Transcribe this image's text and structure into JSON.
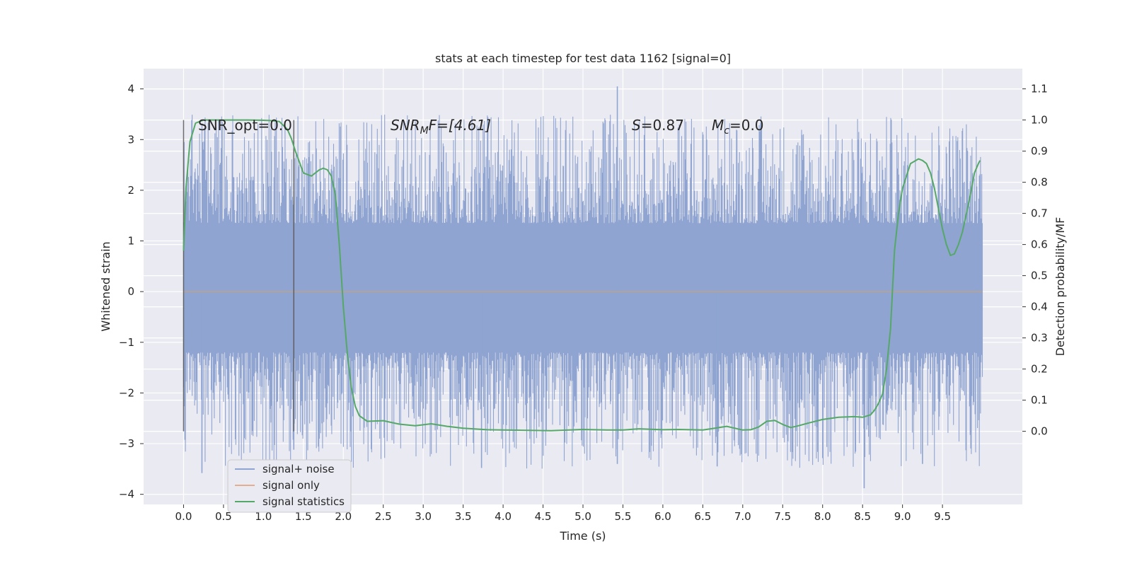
{
  "chart_data": {
    "type": "line",
    "title": "stats at each timestep for test data 1162 [signal=0]",
    "xlabel": "Time (s)",
    "ylabel": "Whitened strain",
    "ylabel_right": "Detection probability/MF",
    "xlim": [
      -0.5,
      10.5
    ],
    "ylim": [
      -4.2,
      4.4
    ],
    "ylim_right": [
      -0.235,
      1.165
    ],
    "x_ticks": [
      "0.0",
      "0.5",
      "1.0",
      "1.5",
      "2.0",
      "2.5",
      "3.0",
      "3.5",
      "4.0",
      "4.5",
      "5.0",
      "5.5",
      "6.0",
      "6.5",
      "7.0",
      "7.5",
      "8.0",
      "8.5",
      "9.0",
      "9.5"
    ],
    "x_tick_values": [
      0,
      0.5,
      1,
      1.5,
      2,
      2.5,
      3,
      3.5,
      4,
      4.5,
      5,
      5.5,
      6,
      6.5,
      7,
      7.5,
      8,
      8.5,
      9,
      9.5
    ],
    "y_ticks": [
      "4",
      "3",
      "2",
      "1",
      "0",
      "−1",
      "−2",
      "−3",
      "−4"
    ],
    "y_tick_values": [
      4,
      3,
      2,
      1,
      0,
      -1,
      -2,
      -3,
      -4
    ],
    "y_right_ticks": [
      "1.1",
      "1.0",
      "0.9",
      "0.8",
      "0.7",
      "0.6",
      "0.5",
      "0.4",
      "0.3",
      "0.2",
      "0.1",
      "0.0"
    ],
    "y_right_tick_values": [
      1.1,
      1.0,
      0.9,
      0.8,
      0.7,
      0.6,
      0.5,
      0.4,
      0.3,
      0.2,
      0.1,
      0.0
    ],
    "grid": true,
    "legend_position": "lower-left",
    "annotations": {
      "snr_opt": "SNR_opt=0.0",
      "snr_mf_prefix": "SNR",
      "snr_mf_sub": "M",
      "snr_mf_suffix": "F=[4.61]",
      "s_label": "S",
      "s_value": "=0.87",
      "mc_label": "M",
      "mc_sub": "c",
      "mc_value": "=0.0"
    },
    "vertical_lines": [
      0.0,
      1.38
    ],
    "series": [
      {
        "name": "signal+ noise",
        "color": "#8fa4d0",
        "axis": "left",
        "x_range": [
          0.0,
          10.0
        ],
        "band_core": [
          -1.2,
          1.35
        ],
        "typical_peak_max": 3.5,
        "typical_peak_min": -3.5,
        "extremes": [
          {
            "x": 0.23,
            "y": -3.58
          },
          {
            "x": 1.38,
            "y": -3.12
          },
          {
            "x": 3.73,
            "y": -3.48
          },
          {
            "x": 5.43,
            "y": 4.05
          },
          {
            "x": 5.43,
            "y": -3.4
          },
          {
            "x": 6.68,
            "y": -3.45
          },
          {
            "x": 8.52,
            "y": -3.88
          },
          {
            "x": 9.25,
            "y": -3.4
          }
        ]
      },
      {
        "name": "signal only",
        "color": "#dd8452",
        "axis": "left",
        "x": [
          0.0,
          10.0
        ],
        "y": [
          0.0,
          0.0
        ]
      },
      {
        "name": "signal statistics",
        "color": "#55a868",
        "axis": "right",
        "x": [
          0.0,
          0.03,
          0.08,
          0.15,
          0.25,
          0.4,
          0.6,
          0.8,
          1.0,
          1.1,
          1.2,
          1.3,
          1.35,
          1.4,
          1.5,
          1.6,
          1.7,
          1.75,
          1.8,
          1.85,
          1.9,
          1.95,
          2.0,
          2.05,
          2.1,
          2.15,
          2.2,
          2.3,
          2.5,
          2.7,
          2.9,
          3.1,
          3.3,
          3.5,
          3.8,
          4.0,
          4.3,
          4.6,
          5.0,
          5.3,
          5.5,
          5.7,
          6.0,
          6.2,
          6.5,
          6.65,
          6.8,
          7.0,
          7.1,
          7.2,
          7.3,
          7.4,
          7.5,
          7.6,
          7.7,
          7.8,
          8.0,
          8.2,
          8.4,
          8.5,
          8.6,
          8.65,
          8.7,
          8.75,
          8.8,
          8.85,
          8.9,
          8.95,
          9.0,
          9.1,
          9.2,
          9.25,
          9.3,
          9.35,
          9.4,
          9.5,
          9.55,
          9.6,
          9.65,
          9.7,
          9.75,
          9.8,
          9.85,
          9.9,
          9.95,
          9.97
        ],
        "y": [
          0.58,
          0.78,
          0.93,
          0.99,
          1.0,
          1.0,
          1.0,
          1.0,
          0.999,
          0.998,
          0.995,
          0.97,
          0.94,
          0.9,
          0.83,
          0.82,
          0.84,
          0.845,
          0.84,
          0.82,
          0.76,
          0.6,
          0.4,
          0.25,
          0.14,
          0.08,
          0.05,
          0.032,
          0.034,
          0.023,
          0.018,
          0.024,
          0.016,
          0.01,
          0.005,
          0.004,
          0.003,
          0.002,
          0.006,
          0.004,
          0.004,
          0.008,
          0.005,
          0.006,
          0.004,
          0.01,
          0.016,
          0.004,
          0.005,
          0.014,
          0.032,
          0.035,
          0.022,
          0.012,
          0.018,
          0.025,
          0.038,
          0.045,
          0.047,
          0.045,
          0.053,
          0.068,
          0.09,
          0.12,
          0.2,
          0.33,
          0.58,
          0.7,
          0.78,
          0.86,
          0.875,
          0.87,
          0.86,
          0.83,
          0.78,
          0.65,
          0.6,
          0.565,
          0.57,
          0.6,
          0.64,
          0.7,
          0.76,
          0.83,
          0.86,
          0.87
        ]
      }
    ]
  }
}
